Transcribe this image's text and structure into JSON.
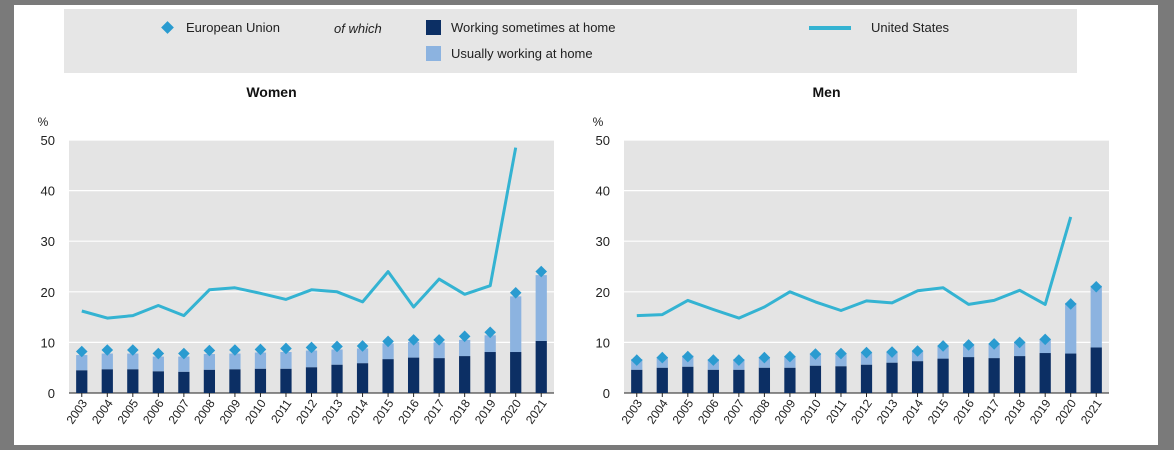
{
  "legend": {
    "eu": "European Union",
    "of_which": "of which",
    "sometimes": "Working sometimes at home",
    "usually": "Usually working at home",
    "us": "United States"
  },
  "colors": {
    "eu_marker": "#2a9bd0",
    "sometimes": "#0c2f64",
    "usually": "#8cb3e0",
    "us": "#34b3d2",
    "plot_bg": "#e4e4e4",
    "grid": "#ffffff"
  },
  "chart_data": [
    {
      "type": "bar",
      "title": "Women",
      "ylabel": "%",
      "ylim": [
        0,
        50
      ],
      "yticks": [
        0,
        10,
        20,
        30,
        40,
        50
      ],
      "grid": true,
      "categories": [
        "2003",
        "2004",
        "2005",
        "2006",
        "2007",
        "2008",
        "2009",
        "2010",
        "2011",
        "2012",
        "2013",
        "2014",
        "2015",
        "2016",
        "2017",
        "2018",
        "2019",
        "2020",
        "2021"
      ],
      "series": [
        {
          "name": "Working sometimes at home",
          "kind": "stacked-bar",
          "values": [
            4.5,
            4.7,
            4.7,
            4.3,
            4.2,
            4.6,
            4.7,
            4.8,
            4.8,
            5.1,
            5.6,
            5.9,
            6.7,
            7.0,
            6.9,
            7.3,
            8.1,
            8.1,
            10.3
          ]
        },
        {
          "name": "Usually working at home",
          "kind": "stacked-bar",
          "values": [
            3.0,
            3.1,
            3.1,
            2.9,
            3.0,
            3.1,
            3.1,
            3.2,
            3.3,
            3.3,
            3.0,
            2.9,
            3.1,
            3.1,
            3.1,
            3.2,
            3.3,
            11.0,
            13.0
          ]
        },
        {
          "name": "European Union",
          "kind": "marker",
          "values": [
            8.2,
            8.5,
            8.5,
            7.8,
            7.8,
            8.4,
            8.5,
            8.6,
            8.8,
            9.0,
            9.2,
            9.3,
            10.2,
            10.5,
            10.5,
            11.2,
            12.0,
            19.8,
            24.0
          ]
        },
        {
          "name": "United States",
          "kind": "line",
          "values": [
            16.2,
            14.8,
            15.3,
            17.3,
            15.3,
            20.4,
            20.8,
            19.7,
            18.5,
            20.4,
            20.0,
            18.0,
            24.0,
            17.0,
            22.5,
            19.5,
            21.2,
            48.5,
            null
          ]
        }
      ]
    },
    {
      "type": "bar",
      "title": "Men",
      "ylabel": "%",
      "ylim": [
        0,
        50
      ],
      "yticks": [
        0,
        10,
        20,
        30,
        40,
        50
      ],
      "grid": true,
      "categories": [
        "2003",
        "2004",
        "2005",
        "2006",
        "2007",
        "2008",
        "2009",
        "2010",
        "2011",
        "2012",
        "2013",
        "2014",
        "2015",
        "2016",
        "2017",
        "2018",
        "2019",
        "2020",
        "2021"
      ],
      "series": [
        {
          "name": "Working sometimes at home",
          "kind": "stacked-bar",
          "values": [
            4.6,
            5.0,
            5.2,
            4.6,
            4.6,
            5.0,
            5.0,
            5.4,
            5.3,
            5.6,
            6.0,
            6.3,
            6.8,
            7.1,
            6.9,
            7.3,
            7.9,
            7.8,
            9.0
          ]
        },
        {
          "name": "Usually working at home",
          "kind": "stacked-bar",
          "values": [
            2.1,
            2.1,
            2.2,
            2.1,
            2.1,
            2.1,
            2.3,
            2.4,
            2.5,
            2.3,
            2.1,
            2.0,
            2.6,
            2.5,
            2.8,
            2.8,
            2.8,
            10.0,
            12.2
          ]
        },
        {
          "name": "European Union",
          "kind": "marker",
          "values": [
            6.5,
            7.0,
            7.2,
            6.5,
            6.5,
            7.0,
            7.2,
            7.7,
            7.8,
            8.0,
            8.1,
            8.3,
            9.3,
            9.5,
            9.7,
            10.0,
            10.6,
            17.6,
            21.0
          ]
        },
        {
          "name": "United States",
          "kind": "line",
          "values": [
            15.3,
            15.5,
            18.3,
            16.5,
            14.8,
            17.0,
            20.0,
            18.0,
            16.3,
            18.2,
            17.8,
            20.2,
            20.8,
            17.5,
            18.3,
            20.3,
            17.5,
            34.8,
            null
          ]
        }
      ]
    }
  ]
}
